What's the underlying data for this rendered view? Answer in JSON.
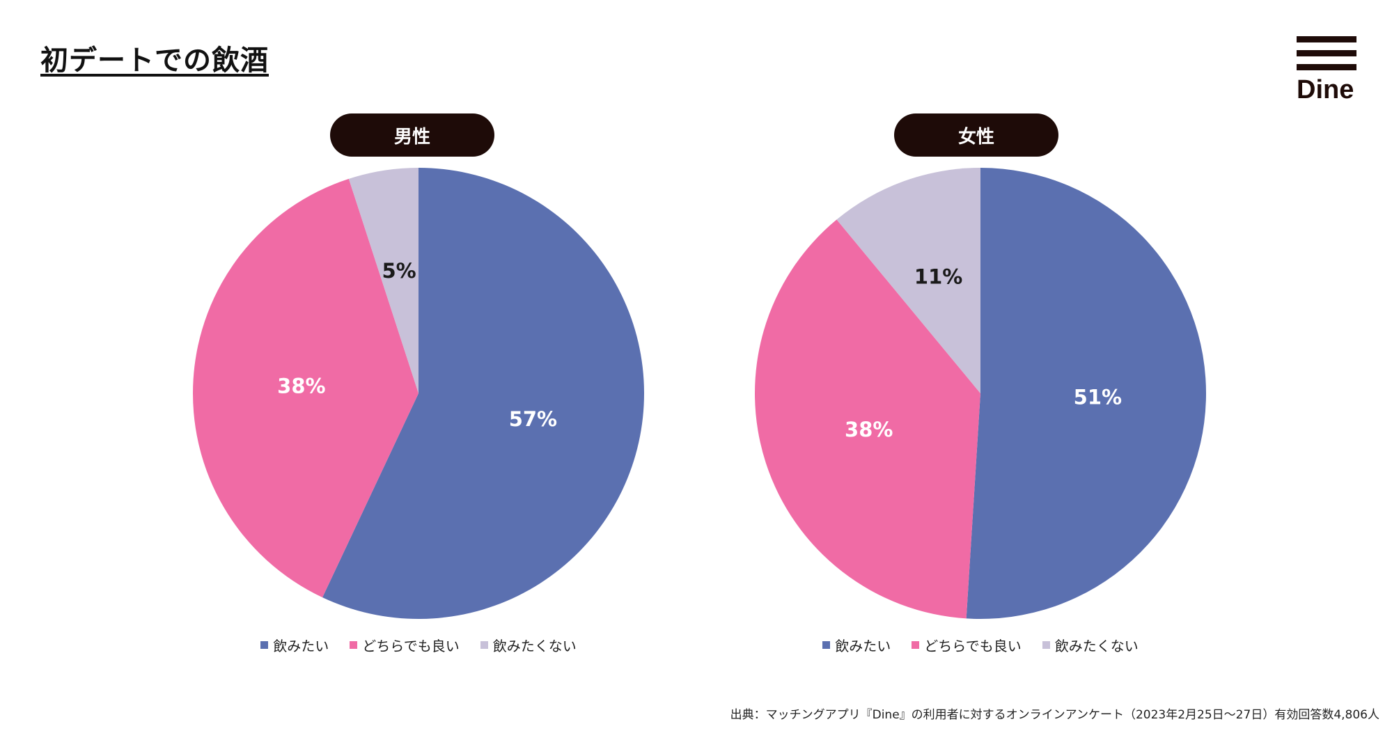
{
  "title": "初デートでの飲酒",
  "logo_text": "Dine",
  "source": "出典：マッチングアプリ『Dine』の利用者に対するオンラインアンケート（2023年2月25日〜27日）有効回答数4,806人",
  "colors": {
    "飲みたい": "#5b70b0",
    "どちらでも良い": "#f06ba5",
    "飲みたくない": "#c8c1d9"
  },
  "chart_data": [
    {
      "type": "pie",
      "title": "男性",
      "categories": [
        "飲みたい",
        "どちらでも良い",
        "飲みたくない"
      ],
      "values": [
        57,
        38,
        5
      ],
      "labels": [
        "57%",
        "38%",
        "5%"
      ],
      "legend": [
        "飲みたい",
        "どちらでも良い",
        "飲みたくない"
      ]
    },
    {
      "type": "pie",
      "title": "女性",
      "categories": [
        "飲みたい",
        "どちらでも良い",
        "飲みたくない"
      ],
      "values": [
        51,
        38,
        11
      ],
      "labels": [
        "51%",
        "38%",
        "11%"
      ],
      "legend": [
        "飲みたい",
        "どちらでも良い",
        "飲みたくない"
      ]
    }
  ]
}
